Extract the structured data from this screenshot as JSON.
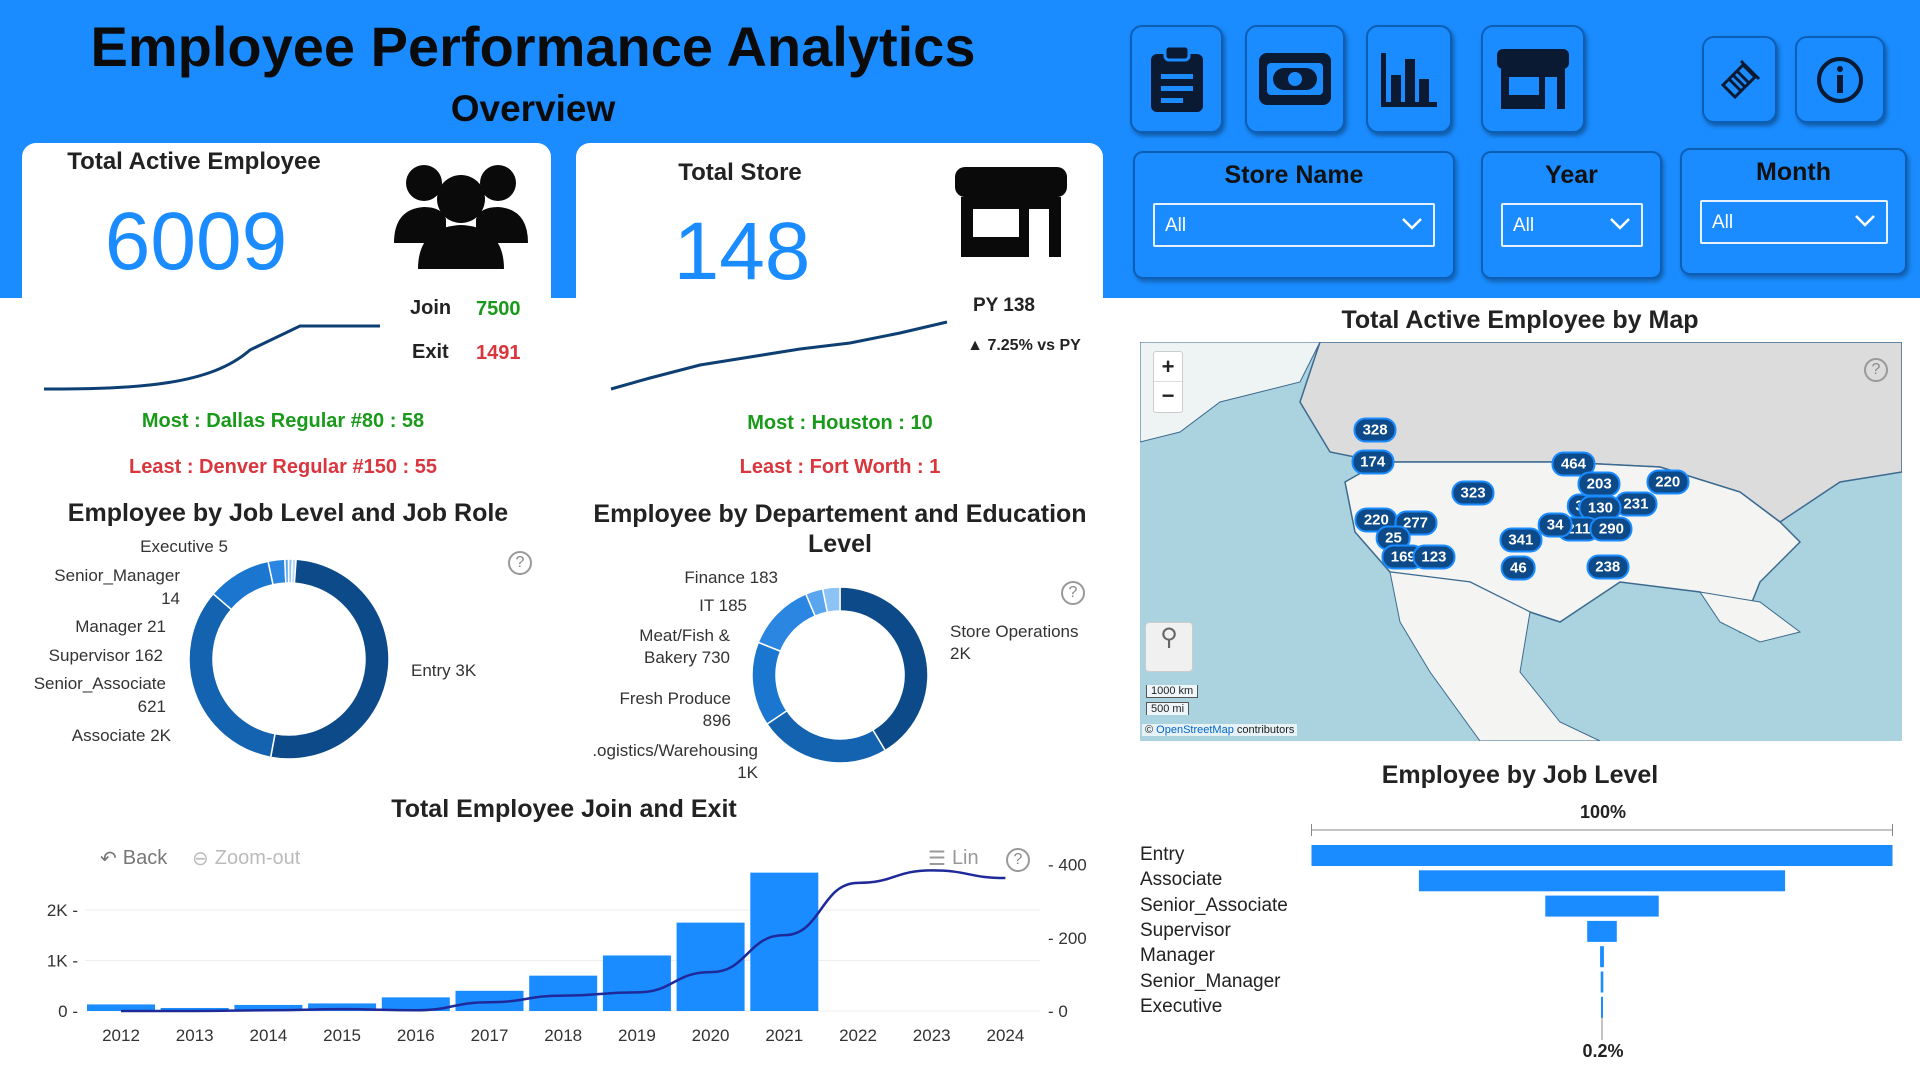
{
  "header": {
    "title": "Employee Performance Analytics",
    "subtitle": "Overview"
  },
  "nav": [
    {
      "icon": "clipboard-icon"
    },
    {
      "icon": "money-icon"
    },
    {
      "icon": "bar-chart-icon"
    },
    {
      "icon": "store-icon"
    },
    {
      "icon": "eraser-icon"
    },
    {
      "icon": "info-icon"
    }
  ],
  "slicers": {
    "store": {
      "label": "Store Name",
      "value": "All"
    },
    "year": {
      "label": "Year",
      "value": "All"
    },
    "month": {
      "label": "Month",
      "value": "All"
    }
  },
  "card_employee": {
    "label": "Total Active Employee",
    "value": "6009",
    "join_label": "Join",
    "join_value": "7500",
    "exit_label": "Exit",
    "exit_value": "1491",
    "most": "Most : Dallas Regular #80 : 58",
    "least": "Least : Denver Regular #150 : 55"
  },
  "card_store": {
    "label": "Total Store",
    "value": "148",
    "py": "PY 138",
    "delta": "▲ 7.25% vs PY",
    "most": "Most : Houston : 10",
    "least": "Least : Fort Worth : 1"
  },
  "colors": {
    "brand": "#1a8cff",
    "positive": "#1a9a1a",
    "negative": "#d9363e",
    "dark": "#0d4a8a"
  },
  "chart_data": [
    {
      "type": "pie",
      "title": "Employee by Job Level and Job Role",
      "donut": true,
      "categories": [
        "Entry",
        "Associate",
        "Senior_Associate",
        "Supervisor",
        "Manager",
        "Senior_Manager",
        "Executive"
      ],
      "values": [
        3181,
        2005,
        621,
        162,
        21,
        14,
        5
      ],
      "labels": {
        "entry": "Entry 3K",
        "associate": "Associate 2K",
        "senior_associate": "Senior_Associate",
        "senior_associate_v": "621",
        "supervisor": "Supervisor 162",
        "manager": "Manager 21",
        "senior_manager": "Senior_Manager",
        "senior_manager_v": "14",
        "executive": "Executive 5"
      },
      "colors": [
        "#0d4a8a",
        "#1463b0",
        "#1a76cf",
        "#2a86e0",
        "#5aa6ee",
        "#8cc2f4",
        "#b9daf8"
      ]
    },
    {
      "type": "pie",
      "title": "Employee by Departement and Education Level",
      "donut": true,
      "categories": [
        "Store Operations",
        "Logistics/Warehousing",
        "Fresh Produce",
        "Meat/Fish & Bakery",
        "IT",
        "Finance"
      ],
      "values": [
        2400,
        1400,
        896,
        730,
        185,
        183
      ],
      "labels": {
        "store_ops": "Store Operations",
        "store_ops_v": "2K",
        "logistics": ".ogistics/Warehousing",
        "logistics_v": "1K",
        "fresh": "Fresh Produce",
        "fresh_v": "896",
        "meat": "Meat/Fish &",
        "meat_v": "Bakery 730",
        "it": "IT 185",
        "finance": "Finance 183"
      },
      "colors": [
        "#0d4a8a",
        "#1463b0",
        "#1a76cf",
        "#2a86e0",
        "#5aa6ee",
        "#8cc2f4"
      ]
    },
    {
      "type": "bar",
      "title": "Total Employee Join and Exit",
      "categories": [
        "2012",
        "2013",
        "2014",
        "2015",
        "2016",
        "2017",
        "2018",
        "2019",
        "2020",
        "2021",
        "2022",
        "2023",
        "2024"
      ],
      "series": [
        {
          "axis": "left",
          "type": "bar",
          "values": [
            130,
            60,
            120,
            150,
            270,
            400,
            700,
            1100,
            1750,
            2740,
            0,
            0,
            0
          ]
        },
        {
          "axis": "right",
          "type": "line",
          "values": [
            0,
            0,
            2,
            5,
            2,
            24,
            42,
            51,
            106,
            207,
            350,
            384,
            363
          ]
        }
      ],
      "ylim_left": [
        0,
        3000
      ],
      "yticks_left": [
        "0",
        "1K",
        "2K"
      ],
      "ylim_right": [
        0,
        400
      ],
      "yticks_right": [
        "0",
        "200",
        "400"
      ],
      "toolbar": {
        "back": "Back",
        "zoom_out": "Zoom-out",
        "lin": "Lin"
      }
    },
    {
      "type": "bar",
      "orientation": "horizontal",
      "title": "Employee by Job Level",
      "categories": [
        "Entry",
        "Associate",
        "Senior_Associate",
        "Supervisor",
        "Manager",
        "Senior_Manager",
        "Executive"
      ],
      "values": [
        3181,
        2005,
        621,
        162,
        21,
        14,
        5
      ],
      "top_label": "100%",
      "bottom_label": "0.2%"
    }
  ],
  "map": {
    "title": "Total Active Employee by Map",
    "markers": [
      "328",
      "174",
      "323",
      "464",
      "203",
      "220",
      "231",
      "3",
      "130",
      "211",
      "290",
      "34",
      "341",
      "46",
      "220",
      "277",
      "25",
      "169",
      "123",
      "238"
    ],
    "scale_km": "1000 km",
    "scale_mi": "500 mi",
    "attribution_link": "OpenStreetMap",
    "attribution_rest": " contributors",
    "zoom_in": "+",
    "zoom_out": "−"
  }
}
